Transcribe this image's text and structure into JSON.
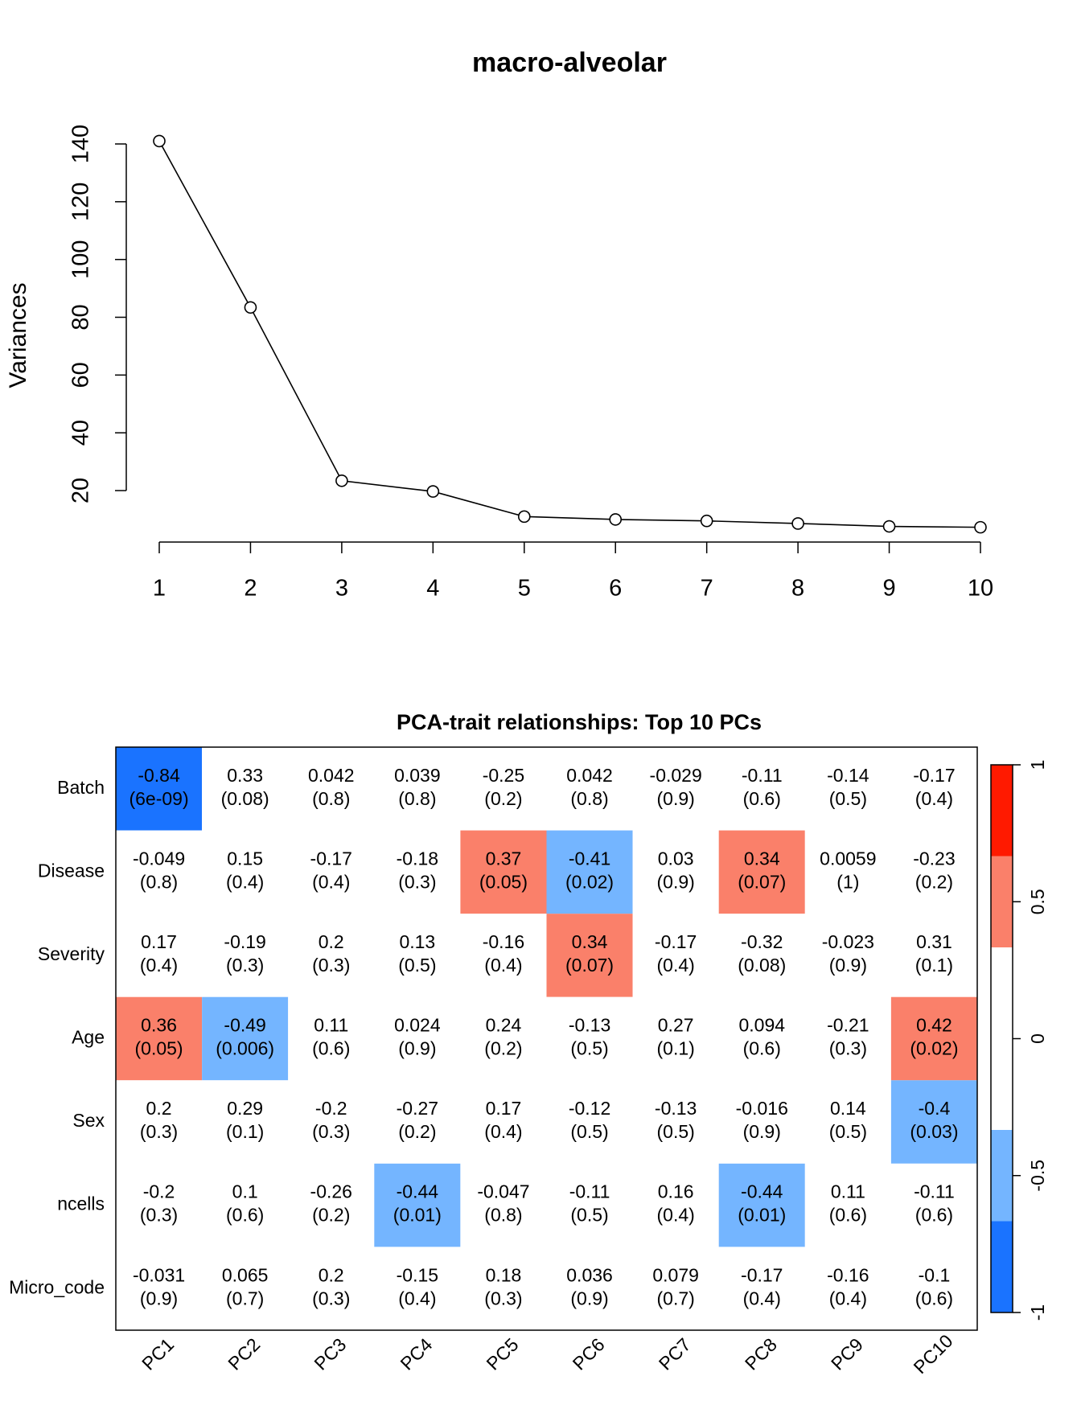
{
  "chart_data": [
    {
      "type": "line",
      "title": "macro-alveolar",
      "ylabel": "Variances",
      "x": [
        1,
        2,
        3,
        4,
        5,
        6,
        7,
        8,
        9,
        10
      ],
      "values": [
        141,
        83.4,
        23.4,
        19.7,
        11,
        10,
        9.5,
        8.6,
        7.6,
        7.3
      ],
      "color": "#000000",
      "xlim": [
        0.64,
        10.36
      ],
      "xticks": [
        1,
        2,
        3,
        4,
        5,
        6,
        7,
        8,
        9,
        10
      ],
      "ylim": [
        2,
        146
      ],
      "yticks": [
        20,
        40,
        60,
        80,
        100,
        120,
        140
      ]
    },
    {
      "type": "heatmap",
      "title": "PCA-trait relationships: Top 10 PCs",
      "rows": [
        "Batch",
        "Disease",
        "Severity",
        "Age",
        "Sex",
        "ncells",
        "Micro_code"
      ],
      "columns": [
        "PC1",
        "PC2",
        "PC3",
        "PC4",
        "PC5",
        "PC6",
        "PC7",
        "PC8",
        "PC9",
        "PC10"
      ],
      "values": [
        [
          -0.84,
          0.33,
          0.042,
          0.039,
          -0.25,
          0.042,
          -0.029,
          -0.11,
          -0.14,
          -0.17
        ],
        [
          -0.049,
          0.15,
          -0.17,
          -0.18,
          0.37,
          -0.41,
          0.03,
          0.34,
          0.0059,
          -0.23
        ],
        [
          0.17,
          -0.19,
          0.2,
          0.13,
          -0.16,
          0.34,
          -0.17,
          -0.32,
          -0.023,
          0.31
        ],
        [
          0.36,
          -0.49,
          0.11,
          0.024,
          0.24,
          -0.13,
          0.27,
          0.094,
          -0.21,
          0.42
        ],
        [
          0.2,
          0.29,
          -0.2,
          -0.27,
          0.17,
          -0.12,
          -0.13,
          -0.016,
          0.14,
          -0.4
        ],
        [
          -0.2,
          0.1,
          -0.26,
          -0.44,
          -0.047,
          -0.11,
          0.16,
          -0.44,
          0.11,
          -0.11
        ],
        [
          -0.031,
          0.065,
          0.2,
          -0.15,
          0.18,
          0.036,
          0.079,
          -0.17,
          -0.16,
          -0.1
        ]
      ],
      "pvalue_labels": [
        [
          "(6e-09)",
          "(0.08)",
          "(0.8)",
          "(0.8)",
          "(0.2)",
          "(0.8)",
          "(0.9)",
          "(0.6)",
          "(0.5)",
          "(0.4)"
        ],
        [
          "(0.8)",
          "(0.4)",
          "(0.4)",
          "(0.3)",
          "(0.05)",
          "(0.02)",
          "(0.9)",
          "(0.07)",
          "(1)",
          "(0.2)"
        ],
        [
          "(0.4)",
          "(0.3)",
          "(0.3)",
          "(0.5)",
          "(0.4)",
          "(0.07)",
          "(0.4)",
          "(0.08)",
          "(0.9)",
          "(0.1)"
        ],
        [
          "(0.05)",
          "(0.006)",
          "(0.6)",
          "(0.9)",
          "(0.2)",
          "(0.5)",
          "(0.1)",
          "(0.6)",
          "(0.3)",
          "(0.02)"
        ],
        [
          "(0.3)",
          "(0.1)",
          "(0.3)",
          "(0.2)",
          "(0.4)",
          "(0.5)",
          "(0.5)",
          "(0.9)",
          "(0.5)",
          "(0.03)"
        ],
        [
          "(0.3)",
          "(0.6)",
          "(0.2)",
          "(0.01)",
          "(0.8)",
          "(0.5)",
          "(0.4)",
          "(0.01)",
          "(0.6)",
          "(0.6)"
        ],
        [
          "(0.9)",
          "(0.7)",
          "(0.3)",
          "(0.4)",
          "(0.3)",
          "(0.9)",
          "(0.7)",
          "(0.4)",
          "(0.4)",
          "(0.6)"
        ]
      ],
      "colorbar": {
        "lim": [
          -1,
          1
        ],
        "ticks": [
          -1,
          -0.5,
          0,
          0.5,
          1
        ],
        "colors": [
          "#1a73ff",
          "#74b5ff",
          "#ffffff",
          "#ffffff",
          "#fa806a",
          "#ff1a00"
        ]
      }
    }
  ]
}
